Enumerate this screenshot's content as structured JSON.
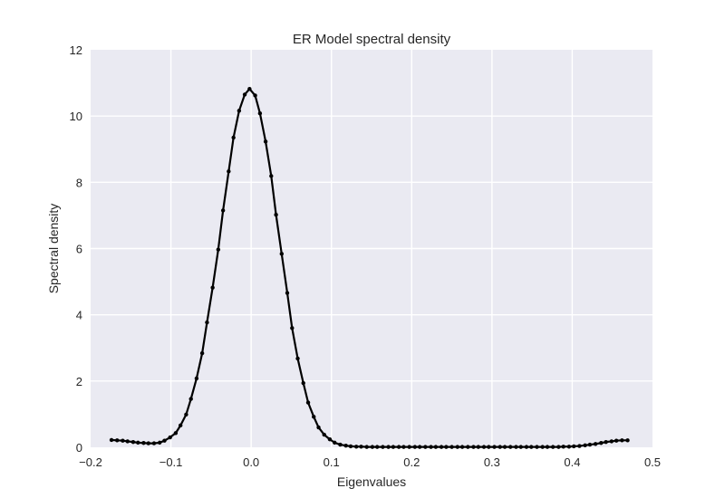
{
  "chart_data": {
    "type": "line",
    "title": "ER Model spectral density",
    "xlabel": "Eigenvalues",
    "ylabel": "Spectral density",
    "xlim": [
      -0.2,
      0.5
    ],
    "ylim": [
      0,
      12
    ],
    "x_ticks": [
      "−0.2",
      "−0.1",
      "0.0",
      "0.1",
      "0.2",
      "0.3",
      "0.4",
      "0.5"
    ],
    "y_ticks": [
      "0",
      "2",
      "4",
      "6",
      "8",
      "10",
      "12"
    ],
    "grid": true,
    "style": {
      "background": "#eaeaf2",
      "grid_color": "#ffffff",
      "line_color": "#000000"
    },
    "series": [
      {
        "marker": "point",
        "points": [
          [
            -0.174,
            0.22
          ],
          [
            -0.167,
            0.21
          ],
          [
            -0.16,
            0.2
          ],
          [
            -0.154,
            0.18
          ],
          [
            -0.147,
            0.16
          ],
          [
            -0.141,
            0.14
          ],
          [
            -0.134,
            0.13
          ],
          [
            -0.128,
            0.12
          ],
          [
            -0.121,
            0.12
          ],
          [
            -0.114,
            0.14
          ],
          [
            -0.108,
            0.2
          ],
          [
            -0.101,
            0.3
          ],
          [
            -0.094,
            0.43
          ],
          [
            -0.088,
            0.66
          ],
          [
            -0.081,
            0.99
          ],
          [
            -0.075,
            1.46
          ],
          [
            -0.068,
            2.08
          ],
          [
            -0.061,
            2.84
          ],
          [
            -0.055,
            3.77
          ],
          [
            -0.048,
            4.82
          ],
          [
            -0.041,
            5.97
          ],
          [
            -0.035,
            7.15
          ],
          [
            -0.028,
            8.33
          ],
          [
            -0.022,
            9.35
          ],
          [
            -0.015,
            10.16
          ],
          [
            -0.008,
            10.65
          ],
          [
            -0.002,
            10.82
          ],
          [
            0.005,
            10.62
          ],
          [
            0.011,
            10.08
          ],
          [
            0.018,
            9.23
          ],
          [
            0.025,
            8.19
          ],
          [
            0.031,
            7.02
          ],
          [
            0.038,
            5.84
          ],
          [
            0.045,
            4.66
          ],
          [
            0.051,
            3.6
          ],
          [
            0.058,
            2.68
          ],
          [
            0.065,
            1.94
          ],
          [
            0.071,
            1.35
          ],
          [
            0.078,
            0.92
          ],
          [
            0.084,
            0.6
          ],
          [
            0.091,
            0.38
          ],
          [
            0.098,
            0.24
          ],
          [
            0.104,
            0.14
          ],
          [
            0.111,
            0.08
          ],
          [
            0.118,
            0.05
          ],
          [
            0.124,
            0.03
          ],
          [
            0.131,
            0.02
          ],
          [
            0.137,
            0.02
          ],
          [
            0.144,
            0.01
          ],
          [
            0.151,
            0.01
          ],
          [
            0.157,
            0.01
          ],
          [
            0.164,
            0.01
          ],
          [
            0.171,
            0.01
          ],
          [
            0.177,
            0.01
          ],
          [
            0.184,
            0.01
          ],
          [
            0.19,
            0.01
          ],
          [
            0.197,
            0.01
          ],
          [
            0.204,
            0.01
          ],
          [
            0.21,
            0.01
          ],
          [
            0.217,
            0.01
          ],
          [
            0.224,
            0.01
          ],
          [
            0.23,
            0.01
          ],
          [
            0.237,
            0.01
          ],
          [
            0.243,
            0.01
          ],
          [
            0.25,
            0.01
          ],
          [
            0.257,
            0.01
          ],
          [
            0.263,
            0.01
          ],
          [
            0.27,
            0.01
          ],
          [
            0.277,
            0.01
          ],
          [
            0.283,
            0.01
          ],
          [
            0.29,
            0.01
          ],
          [
            0.296,
            0.01
          ],
          [
            0.303,
            0.01
          ],
          [
            0.31,
            0.01
          ],
          [
            0.316,
            0.01
          ],
          [
            0.323,
            0.01
          ],
          [
            0.33,
            0.01
          ],
          [
            0.336,
            0.01
          ],
          [
            0.343,
            0.01
          ],
          [
            0.349,
            0.01
          ],
          [
            0.356,
            0.01
          ],
          [
            0.363,
            0.01
          ],
          [
            0.369,
            0.01
          ],
          [
            0.376,
            0.01
          ],
          [
            0.383,
            0.01
          ],
          [
            0.389,
            0.02
          ],
          [
            0.396,
            0.02
          ],
          [
            0.402,
            0.03
          ],
          [
            0.409,
            0.04
          ],
          [
            0.416,
            0.06
          ],
          [
            0.422,
            0.08
          ],
          [
            0.429,
            0.1
          ],
          [
            0.436,
            0.13
          ],
          [
            0.442,
            0.16
          ],
          [
            0.449,
            0.18
          ],
          [
            0.455,
            0.2
          ],
          [
            0.462,
            0.21
          ],
          [
            0.469,
            0.21
          ]
        ]
      }
    ]
  }
}
